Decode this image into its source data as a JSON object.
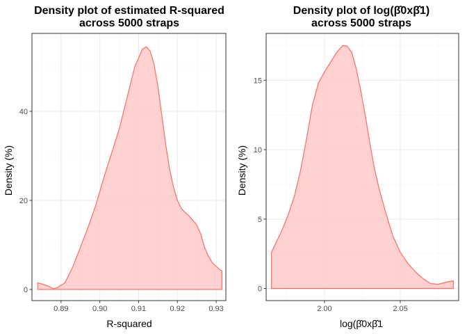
{
  "colors": {
    "curve": "#F8766D",
    "fill": "#FFCCCC",
    "grid_major": "#EBEBEB",
    "grid_minor": "#F5F5F5",
    "panel_border": "#333333",
    "tick_label": "#4D4D4D"
  },
  "chart_data": [
    {
      "type": "area",
      "title_lines": [
        "Density plot of estimated R-squared",
        "across 5000 straps"
      ],
      "xlabel": "R-squared",
      "ylabel": "Density (%)",
      "xlim": [
        0.8825,
        0.9325
      ],
      "ylim": [
        -2.5,
        57.5
      ],
      "x_ticks": [
        0.89,
        0.9,
        0.91,
        0.92,
        0.93
      ],
      "x_tick_labels": [
        "0.89",
        "0.90",
        "0.91",
        "0.92",
        "0.93"
      ],
      "y_ticks": [
        0,
        20,
        40
      ],
      "y_tick_labels": [
        "0",
        "20",
        "40"
      ],
      "grid": true,
      "x": [
        0.884,
        0.886,
        0.888,
        0.889,
        0.891,
        0.893,
        0.895,
        0.897,
        0.899,
        0.901,
        0.903,
        0.905,
        0.907,
        0.909,
        0.911,
        0.912,
        0.913,
        0.914,
        0.915,
        0.916,
        0.917,
        0.918,
        0.919,
        0.92,
        0.921,
        0.922,
        0.923,
        0.924,
        0.925,
        0.926,
        0.927,
        0.928,
        0.929,
        0.93,
        0.931,
        0.9315
      ],
      "y": [
        1.5,
        1.0,
        0.2,
        0.4,
        1.5,
        5,
        9.5,
        14,
        19,
        25,
        30.5,
        36,
        43,
        50,
        54,
        54.5,
        53.5,
        50.5,
        45.5,
        39,
        32.5,
        27,
        23,
        20,
        18.2,
        17.3,
        16.5,
        15.5,
        14.5,
        12.5,
        9.5,
        7.5,
        6.0,
        5.2,
        4.4,
        4.2
      ]
    },
    {
      "type": "area",
      "title_lines": [
        "Density plot of log(β̂0xβ̂1)",
        "across 5000 straps"
      ],
      "xlabel": "log(β̂0xβ̂1",
      "ylabel": "Density (%)",
      "xlim": [
        1.9615,
        2.0885
      ],
      "ylim": [
        -0.875,
        18.375
      ],
      "x_ticks": [
        2.0,
        2.05
      ],
      "x_tick_labels": [
        "2.00",
        "2.05"
      ],
      "y_ticks": [
        0,
        5,
        10,
        15
      ],
      "y_tick_labels": [
        "0",
        "5",
        "10",
        "15"
      ],
      "grid": true,
      "x": [
        1.965,
        1.968,
        1.972,
        1.976,
        1.98,
        1.984,
        1.988,
        1.992,
        1.996,
        2.0,
        2.004,
        2.008,
        2.012,
        2.015,
        2.018,
        2.021,
        2.024,
        2.027,
        2.03,
        2.033,
        2.036,
        2.04,
        2.045,
        2.05,
        2.055,
        2.06,
        2.065,
        2.07,
        2.075,
        2.08,
        2.085
      ],
      "y": [
        2.6,
        3.3,
        4.2,
        5.3,
        6.6,
        8.4,
        10.7,
        13.2,
        14.8,
        15.6,
        16.3,
        17.0,
        17.5,
        17.45,
        17.0,
        15.8,
        14.2,
        12.4,
        10.4,
        8.6,
        7.2,
        5.6,
        3.8,
        2.6,
        1.8,
        1.2,
        0.7,
        0.35,
        0.3,
        0.45,
        0.55
      ]
    }
  ]
}
